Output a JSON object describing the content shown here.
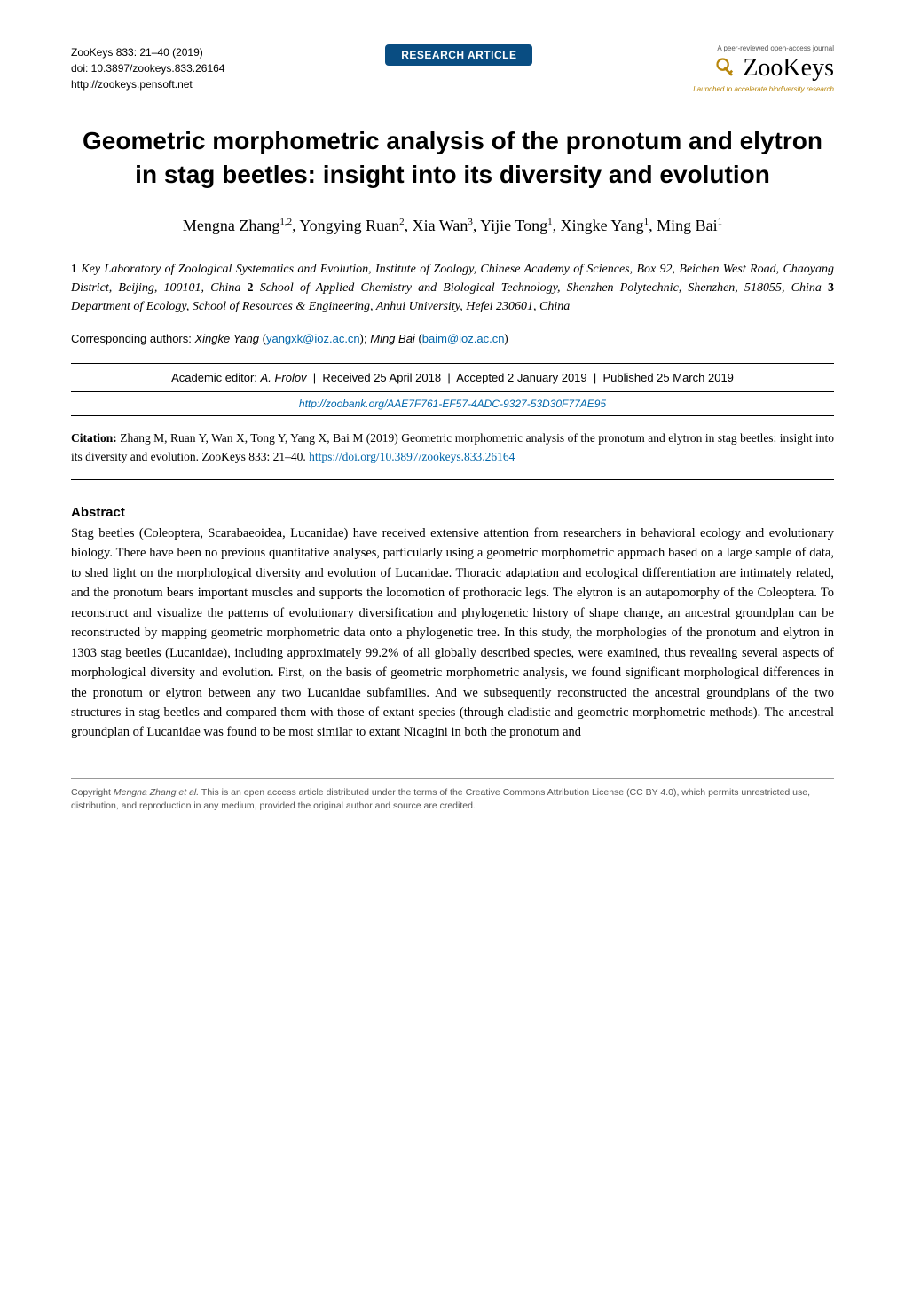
{
  "header": {
    "journal_line": "ZooKeys 833: 21–40 (2019)",
    "doi_line": "doi: 10.3897/zookeys.833.26164",
    "url_line": "http://zookeys.pensoft.net",
    "badge": "RESEARCH ARTICLE",
    "logo_top": "A peer-reviewed open-access journal",
    "logo_text": "ZooKeys",
    "logo_tagline": "Launched to accelerate biodiversity research"
  },
  "title": "Geometric morphometric analysis of the pronotum and elytron in stag beetles: insight into its diversity and evolution",
  "authors_html": "Mengna Zhang<sup>1,2</sup>, Yongying Ruan<sup>2</sup>, Xia Wan<sup>3</sup>, Yijie Tong<sup>1</sup>, Xingke Yang<sup>1</sup>, Ming Bai<sup>1</sup>",
  "affiliations": "<b>1</b> Key Laboratory of Zoological Systematics and Evolution, Institute of Zoology, Chinese Academy of Sciences, Box 92, Beichen West Road, Chaoyang District, Beijing, 100101, China <b>2</b> School of Applied Chemistry and Biological Technology, Shenzhen Polytechnic, Shenzhen, 518055, China <b>3</b> Department of Ecology, School of Resources & Engineering, Anhui University, Hefei 230601, China",
  "corresponding": {
    "label": "Corresponding authors:",
    "name1": "Xingke Yang",
    "email1": "yangxk@ioz.ac.cn",
    "name2": "Ming Bai",
    "email2": "baim@ioz.ac.cn"
  },
  "editor_row": {
    "editor_label": "Academic editor:",
    "editor_name": "A. Frolov",
    "received": "Received 25 April 2018",
    "accepted": "Accepted 2 January 2019",
    "published": "Published 25 March 2019"
  },
  "zoobank": "http://zoobank.org/AAE7F761-EF57-4ADC-9327-53D30F77AE95",
  "citation": {
    "label": "Citation:",
    "text": "Zhang M, Ruan Y, Wan X, Tong Y, Yang X, Bai M (2019) Geometric morphometric analysis of the pronotum and elytron in stag beetles: insight into its diversity and evolution. ZooKeys 833: 21–40. ",
    "link": "https://doi.org/10.3897/zookeys.833.26164"
  },
  "abstract": {
    "heading": "Abstract",
    "body": "Stag beetles (Coleoptera, Scarabaeoidea, Lucanidae) have received extensive attention from researchers in behavioral ecology and evolutionary biology. There have been no previous quantitative analyses, particularly using a geometric morphometric approach based on a large sample of data, to shed light on the morphological diversity and evolution of Lucanidae. Thoracic adaptation and ecological differentiation are intimately related, and the pronotum bears important muscles and supports the locomotion of prothoracic legs. The elytron is an autapomorphy of the Coleoptera. To reconstruct and visualize the patterns of evolutionary diversification and phylogenetic history of shape change, an ancestral groundplan can be reconstructed by mapping geometric morphometric data onto a phylogenetic tree. In this study, the morphologies of the pronotum and elytron in 1303 stag beetles (Lucanidae), including approximately 99.2% of all globally described species, were examined, thus revealing several aspects of morphological diversity and evolution. First, on the basis of geometric morphometric analysis, we found significant morphological differences in the pronotum or elytron between any two Lucanidae subfamilies. And we subsequently reconstructed the ancestral groundplans of the two structures in stag beetles and compared them with those of extant species (through cladistic and geometric morphometric methods). The ancestral groundplan of Lucanidae was found to be most similar to extant Nicagini in both the pronotum and"
  },
  "footer": {
    "copyright_prefix": "Copyright ",
    "copyright_holder": "Mengna Zhang et al.",
    "copyright_text": " This is an open access article distributed under the terms of the Creative Commons Attribution License (CC BY 4.0), which permits unrestricted use, distribution, and reproduction in any medium, provided the original author and source are credited."
  },
  "colors": {
    "badge_bg": "#094d82",
    "link": "#0066aa",
    "logo_tag": "#b8860b"
  }
}
